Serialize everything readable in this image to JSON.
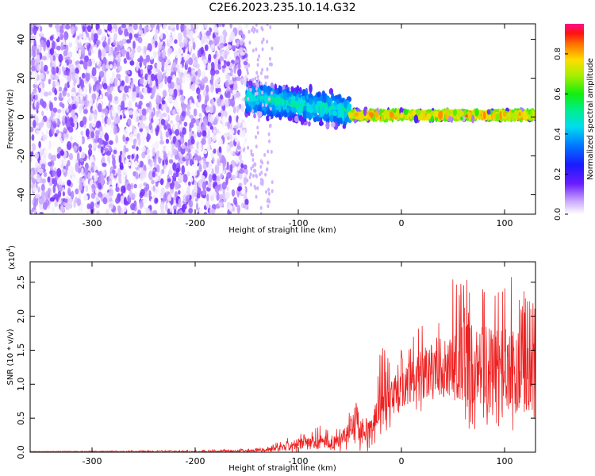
{
  "figure_title": "C2E6.2023.235.10.14.G32",
  "colors": {
    "snr_line": "#ee2222",
    "axis": "#000000",
    "background": "#ffffff"
  },
  "chart_data": [
    {
      "type": "heatmap",
      "name": "spectrogram",
      "xlabel": "Height of straight line (km)",
      "ylabel": "Frequency (Hz)",
      "xlim": [
        -360,
        130
      ],
      "ylim": [
        -50,
        48
      ],
      "xticks": [
        -300,
        -200,
        -100,
        0,
        100
      ],
      "yticks": [
        -40,
        -20,
        0,
        20,
        40
      ],
      "colorbar": {
        "label": "Normalized spectral amplitude",
        "range": [
          0,
          0.95
        ],
        "ticks": [
          "0.0",
          "0.2",
          "0.4",
          "0.6",
          "0.8"
        ],
        "colormap": "gist_rainbow-like (white-violet-blue-cyan-green-yellow-orange-red-pink)"
      },
      "regions": [
        {
          "x_range": [
            -360,
            -150
          ],
          "description": "broadband noise across all frequencies",
          "amplitude_range": [
            0.0,
            0.15
          ]
        },
        {
          "x_range": [
            -150,
            -50
          ],
          "center_frequency_hz": 5,
          "spread_hz": 8,
          "amplitude_range": [
            0.2,
            0.55
          ]
        },
        {
          "x_range": [
            -50,
            130
          ],
          "center_frequency_hz": 1,
          "spread_hz": 2,
          "amplitude_range": [
            0.5,
            0.9
          ]
        }
      ]
    },
    {
      "type": "line",
      "name": "snr",
      "xlabel": "Height of straight line (km)",
      "ylabel": "SNR (10 * v/v)",
      "y_multiplier_label": "(x10",
      "y_multiplier_exp": "4",
      "y_multiplier_close": ")",
      "xlim": [
        -360,
        130
      ],
      "ylim": [
        0,
        2.8
      ],
      "xticks": [
        -300,
        -200,
        -100,
        0,
        100
      ],
      "yticks": [
        "0.0",
        "0.5",
        "1.0",
        "1.5",
        "2.0",
        "2.5"
      ],
      "units_scale": 10000,
      "series": [
        {
          "x": [
            -360,
            -300,
            -200,
            -150,
            -130,
            -110,
            -100,
            -80,
            -60,
            -50,
            -45,
            -40,
            -30,
            -25,
            -20,
            -10,
            0,
            10,
            20,
            30,
            40,
            50,
            60,
            70,
            80,
            90,
            100,
            110,
            120,
            130
          ],
          "y_mean": [
            0.01,
            0.01,
            0.01,
            0.02,
            0.03,
            0.08,
            0.12,
            0.15,
            0.18,
            0.3,
            0.45,
            0.3,
            0.3,
            0.5,
            0.65,
            0.8,
            0.95,
            1.05,
            1.15,
            1.25,
            1.3,
            1.35,
            1.3,
            1.3,
            1.25,
            1.25,
            1.25,
            1.2,
            1.1,
            1.1
          ],
          "y_peak": [
            0.01,
            0.02,
            0.03,
            0.05,
            0.08,
            0.22,
            0.3,
            0.4,
            0.35,
            0.6,
            0.8,
            0.55,
            0.5,
            0.95,
            1.6,
            1.35,
            1.55,
            1.7,
            1.95,
            2.05,
            2.4,
            2.55,
            2.6,
            2.45,
            2.5,
            2.7,
            2.45,
            2.65,
            2.4,
            2.3
          ],
          "y_trough": [
            0.0,
            0.0,
            0.0,
            0.0,
            0.0,
            0.0,
            0.0,
            0.0,
            0.0,
            0.05,
            0.0,
            0.0,
            0.0,
            0.1,
            0.2,
            0.35,
            0.45,
            0.55,
            0.5,
            0.65,
            0.6,
            0.55,
            0.35,
            0.3,
            0.25,
            0.5,
            0.15,
            0.35,
            0.5,
            0.3
          ]
        }
      ]
    }
  ]
}
